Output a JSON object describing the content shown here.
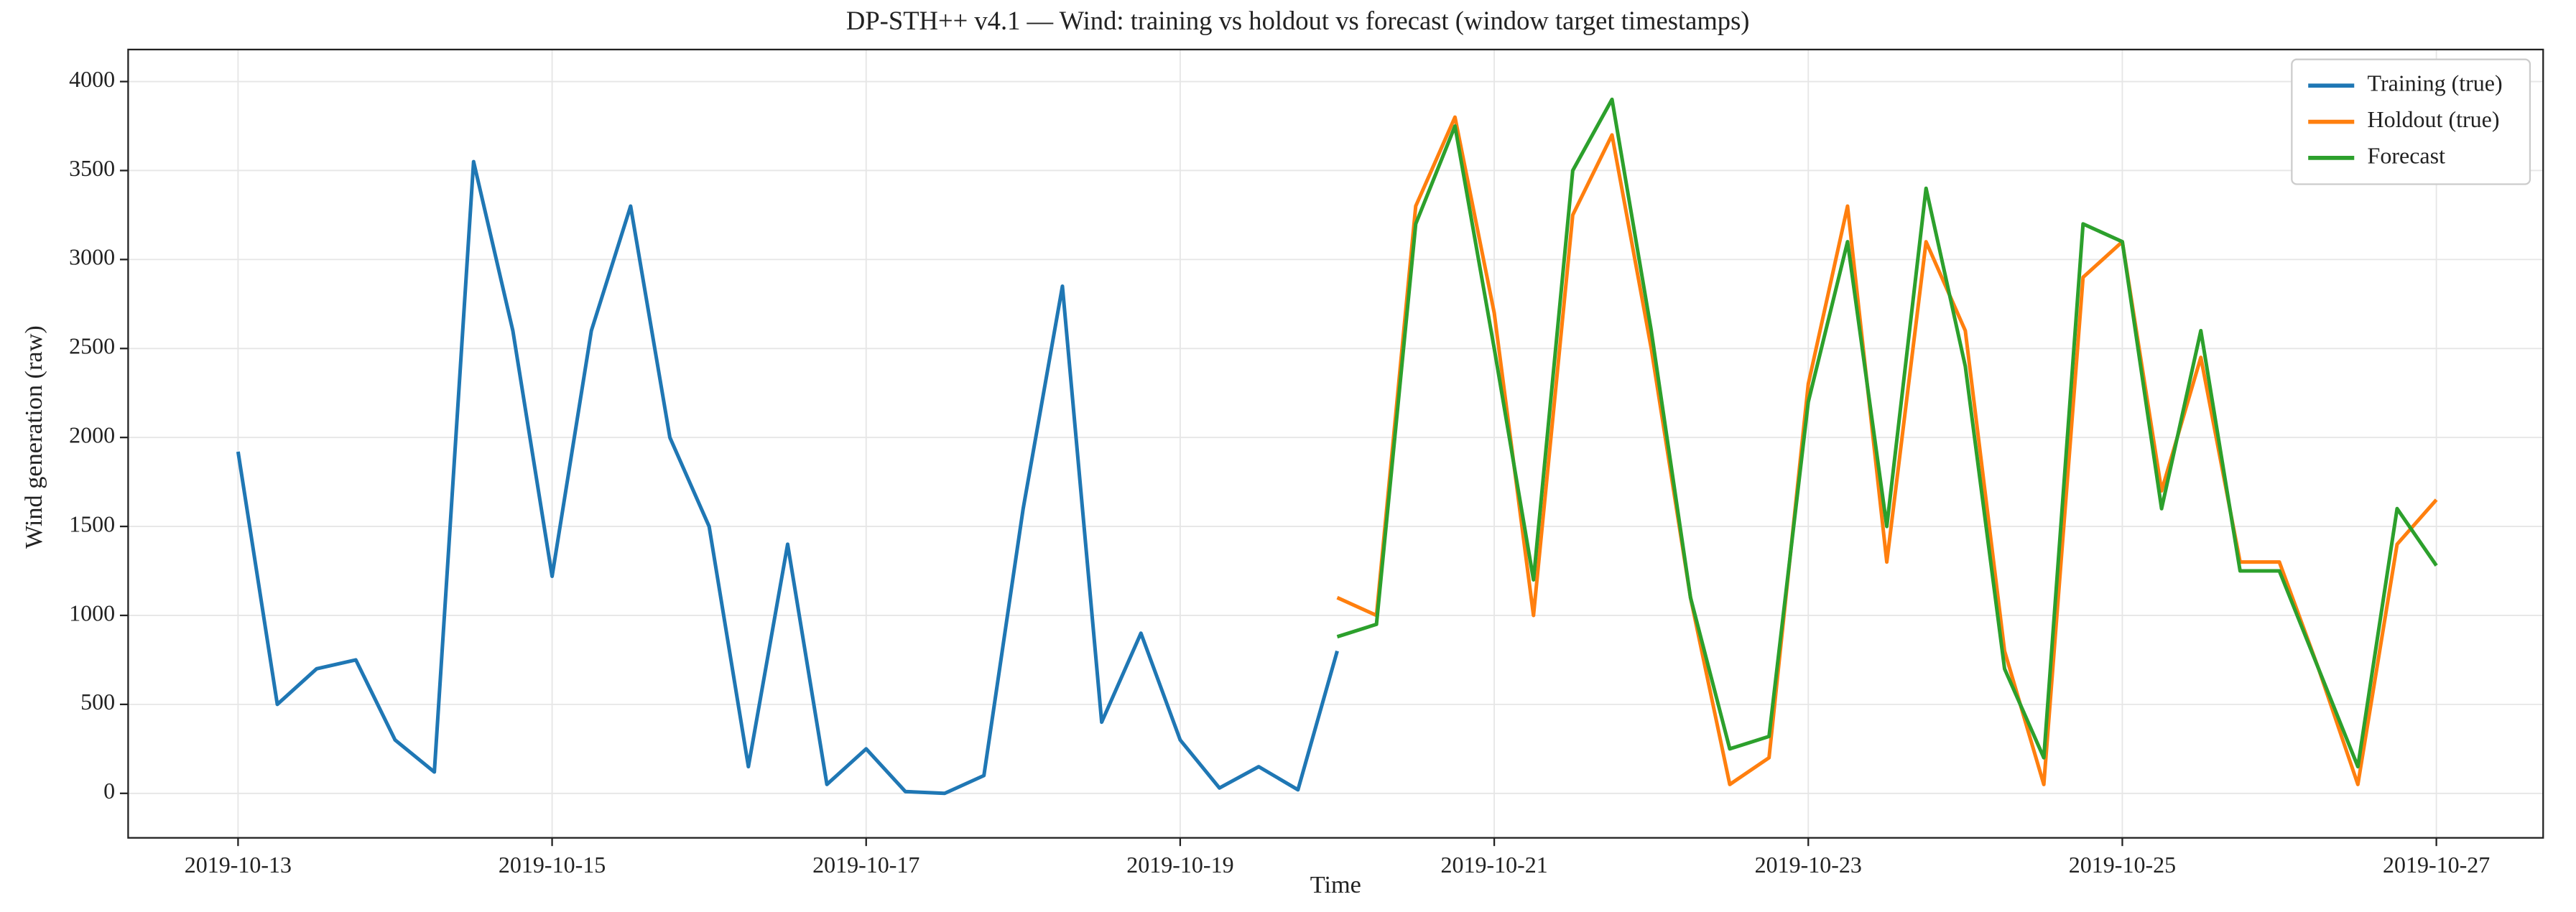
{
  "chart_data": {
    "type": "line",
    "title": "DP-STH++ v4.1 — Wind: training vs holdout vs forecast (window target timestamps)",
    "x_label": "Time",
    "y_label": "Wind generation (raw)",
    "x": [
      13,
      13.25,
      13.5,
      13.75,
      14,
      14.25,
      14.5,
      14.75,
      15,
      15.25,
      15.5,
      15.75,
      16,
      16.25,
      16.5,
      16.75,
      17,
      17.25,
      17.5,
      17.75,
      18,
      18.25,
      18.5,
      18.75,
      19,
      19.25,
      19.5,
      19.75,
      20,
      20.25,
      20.5,
      20.75,
      21,
      21.25,
      21.5,
      21.75,
      22,
      22.25,
      22.5,
      22.75,
      23,
      23.25,
      23.5,
      23.75,
      24,
      24.25,
      24.5,
      24.75,
      25,
      25.25,
      25.5,
      25.75,
      26,
      26.25,
      26.5,
      26.75,
      27
    ],
    "series": [
      {
        "name": "Training (true)",
        "color": "#1f77b4",
        "values": [
          1920,
          500,
          700,
          750,
          300,
          120,
          3550,
          2600,
          1220,
          2600,
          3300,
          2000,
          1500,
          150,
          1400,
          50,
          250,
          10,
          0,
          100,
          1600,
          2850,
          400,
          900,
          300,
          30,
          150,
          20,
          800,
          null,
          null,
          null,
          null,
          null,
          null,
          null,
          null,
          null,
          null,
          null,
          null,
          null,
          null,
          null,
          null,
          null,
          null,
          null,
          null,
          null,
          null,
          null,
          null,
          null,
          null,
          null,
          null
        ]
      },
      {
        "name": "Holdout (true)",
        "color": "#ff7f0e",
        "values": [
          null,
          null,
          null,
          null,
          null,
          null,
          null,
          null,
          null,
          null,
          null,
          null,
          null,
          null,
          null,
          null,
          null,
          null,
          null,
          null,
          null,
          null,
          null,
          null,
          null,
          null,
          null,
          null,
          1100,
          1000,
          3300,
          3800,
          2700,
          1000,
          3250,
          3700,
          2500,
          1100,
          50,
          200,
          2300,
          3300,
          1300,
          3100,
          2600,
          800,
          50,
          2900,
          3100,
          1700,
          2450,
          1300,
          1300,
          700,
          50,
          1400,
          1650
        ]
      },
      {
        "name": "Forecast",
        "color": "#2ca02c",
        "values": [
          null,
          null,
          null,
          null,
          null,
          null,
          null,
          null,
          null,
          null,
          null,
          null,
          null,
          null,
          null,
          null,
          null,
          null,
          null,
          null,
          null,
          null,
          null,
          null,
          null,
          null,
          null,
          null,
          880,
          950,
          3200,
          3750,
          2500,
          1200,
          3500,
          3900,
          2600,
          1100,
          250,
          320,
          2200,
          3100,
          1500,
          3400,
          2400,
          700,
          200,
          3200,
          3100,
          1600,
          2600,
          1250,
          1250,
          700,
          150,
          1600,
          1280
        ]
      }
    ],
    "xlim": [
      12.3,
      27.68
    ],
    "xticks": [
      {
        "value": 13,
        "label": "2019-10-13"
      },
      {
        "value": 15,
        "label": "2019-10-15"
      },
      {
        "value": 17,
        "label": "2019-10-17"
      },
      {
        "value": 19,
        "label": "2019-10-19"
      },
      {
        "value": 21,
        "label": "2019-10-21"
      },
      {
        "value": 23,
        "label": "2019-10-23"
      },
      {
        "value": 25,
        "label": "2019-10-25"
      },
      {
        "value": 27,
        "label": "2019-10-27"
      }
    ],
    "ylim": [
      -250,
      4180
    ],
    "yticks": [
      0,
      500,
      1000,
      1500,
      2000,
      2500,
      3000,
      3500,
      4000
    ],
    "grid": true,
    "legend": "upper right"
  }
}
